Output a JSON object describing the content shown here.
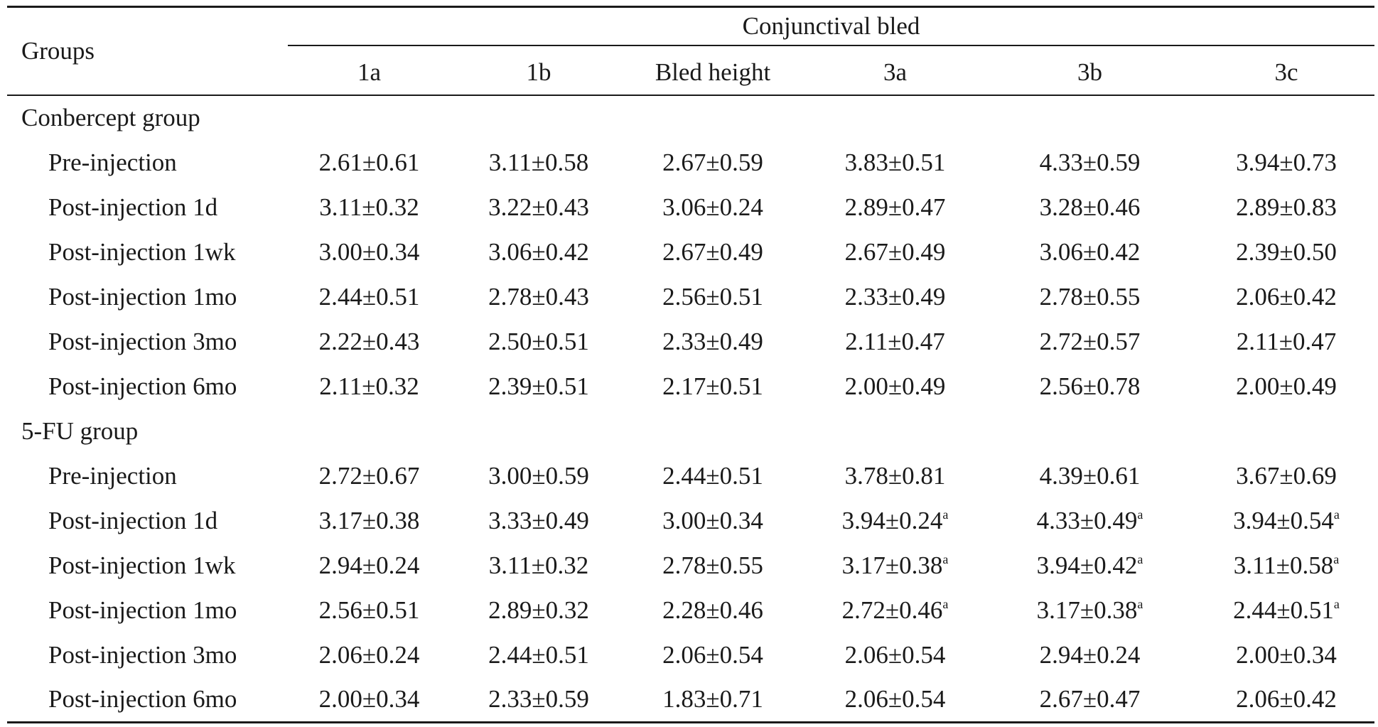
{
  "table": {
    "header": {
      "groups_label": "Groups",
      "span_label": "Conjunctival bled",
      "columns": [
        "1a",
        "1b",
        "Bled height",
        "3a",
        "3b",
        "3c"
      ]
    },
    "sections": [
      {
        "title": "Conbercept group",
        "rows": [
          {
            "label": "Pre-injection",
            "cells": [
              {
                "v": "2.61±0.61"
              },
              {
                "v": "3.11±0.58"
              },
              {
                "v": "2.67±0.59"
              },
              {
                "v": "3.83±0.51"
              },
              {
                "v": "4.33±0.59"
              },
              {
                "v": "3.94±0.73"
              }
            ]
          },
          {
            "label": "Post-injection 1d",
            "cells": [
              {
                "v": "3.11±0.32"
              },
              {
                "v": "3.22±0.43"
              },
              {
                "v": "3.06±0.24"
              },
              {
                "v": "2.89±0.47"
              },
              {
                "v": "3.28±0.46"
              },
              {
                "v": "2.89±0.83"
              }
            ]
          },
          {
            "label": "Post-injection 1wk",
            "cells": [
              {
                "v": "3.00±0.34"
              },
              {
                "v": "3.06±0.42"
              },
              {
                "v": "2.67±0.49"
              },
              {
                "v": "2.67±0.49"
              },
              {
                "v": "3.06±0.42"
              },
              {
                "v": "2.39±0.50"
              }
            ]
          },
          {
            "label": "Post-injection 1mo",
            "cells": [
              {
                "v": "2.44±0.51"
              },
              {
                "v": "2.78±0.43"
              },
              {
                "v": "2.56±0.51"
              },
              {
                "v": "2.33±0.49"
              },
              {
                "v": "2.78±0.55"
              },
              {
                "v": "2.06±0.42"
              }
            ]
          },
          {
            "label": "Post-injection 3mo",
            "cells": [
              {
                "v": "2.22±0.43"
              },
              {
                "v": "2.50±0.51"
              },
              {
                "v": "2.33±0.49"
              },
              {
                "v": "2.11±0.47"
              },
              {
                "v": "2.72±0.57"
              },
              {
                "v": "2.11±0.47"
              }
            ]
          },
          {
            "label": "Post-injection 6mo",
            "cells": [
              {
                "v": "2.11±0.32"
              },
              {
                "v": "2.39±0.51"
              },
              {
                "v": "2.17±0.51"
              },
              {
                "v": "2.00±0.49"
              },
              {
                "v": "2.56±0.78"
              },
              {
                "v": "2.00±0.49"
              }
            ]
          }
        ]
      },
      {
        "title": "5-FU group",
        "rows": [
          {
            "label": "Pre-injection",
            "cells": [
              {
                "v": "2.72±0.67"
              },
              {
                "v": "3.00±0.59"
              },
              {
                "v": "2.44±0.51"
              },
              {
                "v": "3.78±0.81"
              },
              {
                "v": "4.39±0.61"
              },
              {
                "v": "3.67±0.69"
              }
            ]
          },
          {
            "label": "Post-injection 1d",
            "cells": [
              {
                "v": "3.17±0.38"
              },
              {
                "v": "3.33±0.49"
              },
              {
                "v": "3.00±0.34"
              },
              {
                "v": "3.94±0.24",
                "sup": "a"
              },
              {
                "v": "4.33±0.49",
                "sup": "a"
              },
              {
                "v": "3.94±0.54",
                "sup": "a"
              }
            ]
          },
          {
            "label": "Post-injection 1wk",
            "cells": [
              {
                "v": "2.94±0.24"
              },
              {
                "v": "3.11±0.32"
              },
              {
                "v": "2.78±0.55"
              },
              {
                "v": "3.17±0.38",
                "sup": "a"
              },
              {
                "v": "3.94±0.42",
                "sup": "a"
              },
              {
                "v": "3.11±0.58",
                "sup": "a"
              }
            ]
          },
          {
            "label": "Post-injection 1mo",
            "cells": [
              {
                "v": "2.56±0.51"
              },
              {
                "v": "2.89±0.32"
              },
              {
                "v": "2.28±0.46"
              },
              {
                "v": "2.72±0.46",
                "sup": "a"
              },
              {
                "v": "3.17±0.38",
                "sup": "a"
              },
              {
                "v": "2.44±0.51",
                "sup": "a"
              }
            ]
          },
          {
            "label": "Post-injection 3mo",
            "cells": [
              {
                "v": "2.06±0.24"
              },
              {
                "v": "2.44±0.51"
              },
              {
                "v": "2.06±0.54"
              },
              {
                "v": "2.06±0.54"
              },
              {
                "v": "2.94±0.24"
              },
              {
                "v": "2.00±0.34"
              }
            ]
          },
          {
            "label": "Post-injection 6mo",
            "cells": [
              {
                "v": "2.00±0.34"
              },
              {
                "v": "2.33±0.59"
              },
              {
                "v": "1.83±0.71"
              },
              {
                "v": "2.06±0.54"
              },
              {
                "v": "2.67±0.47"
              },
              {
                "v": "2.06±0.42"
              }
            ]
          }
        ]
      }
    ]
  }
}
